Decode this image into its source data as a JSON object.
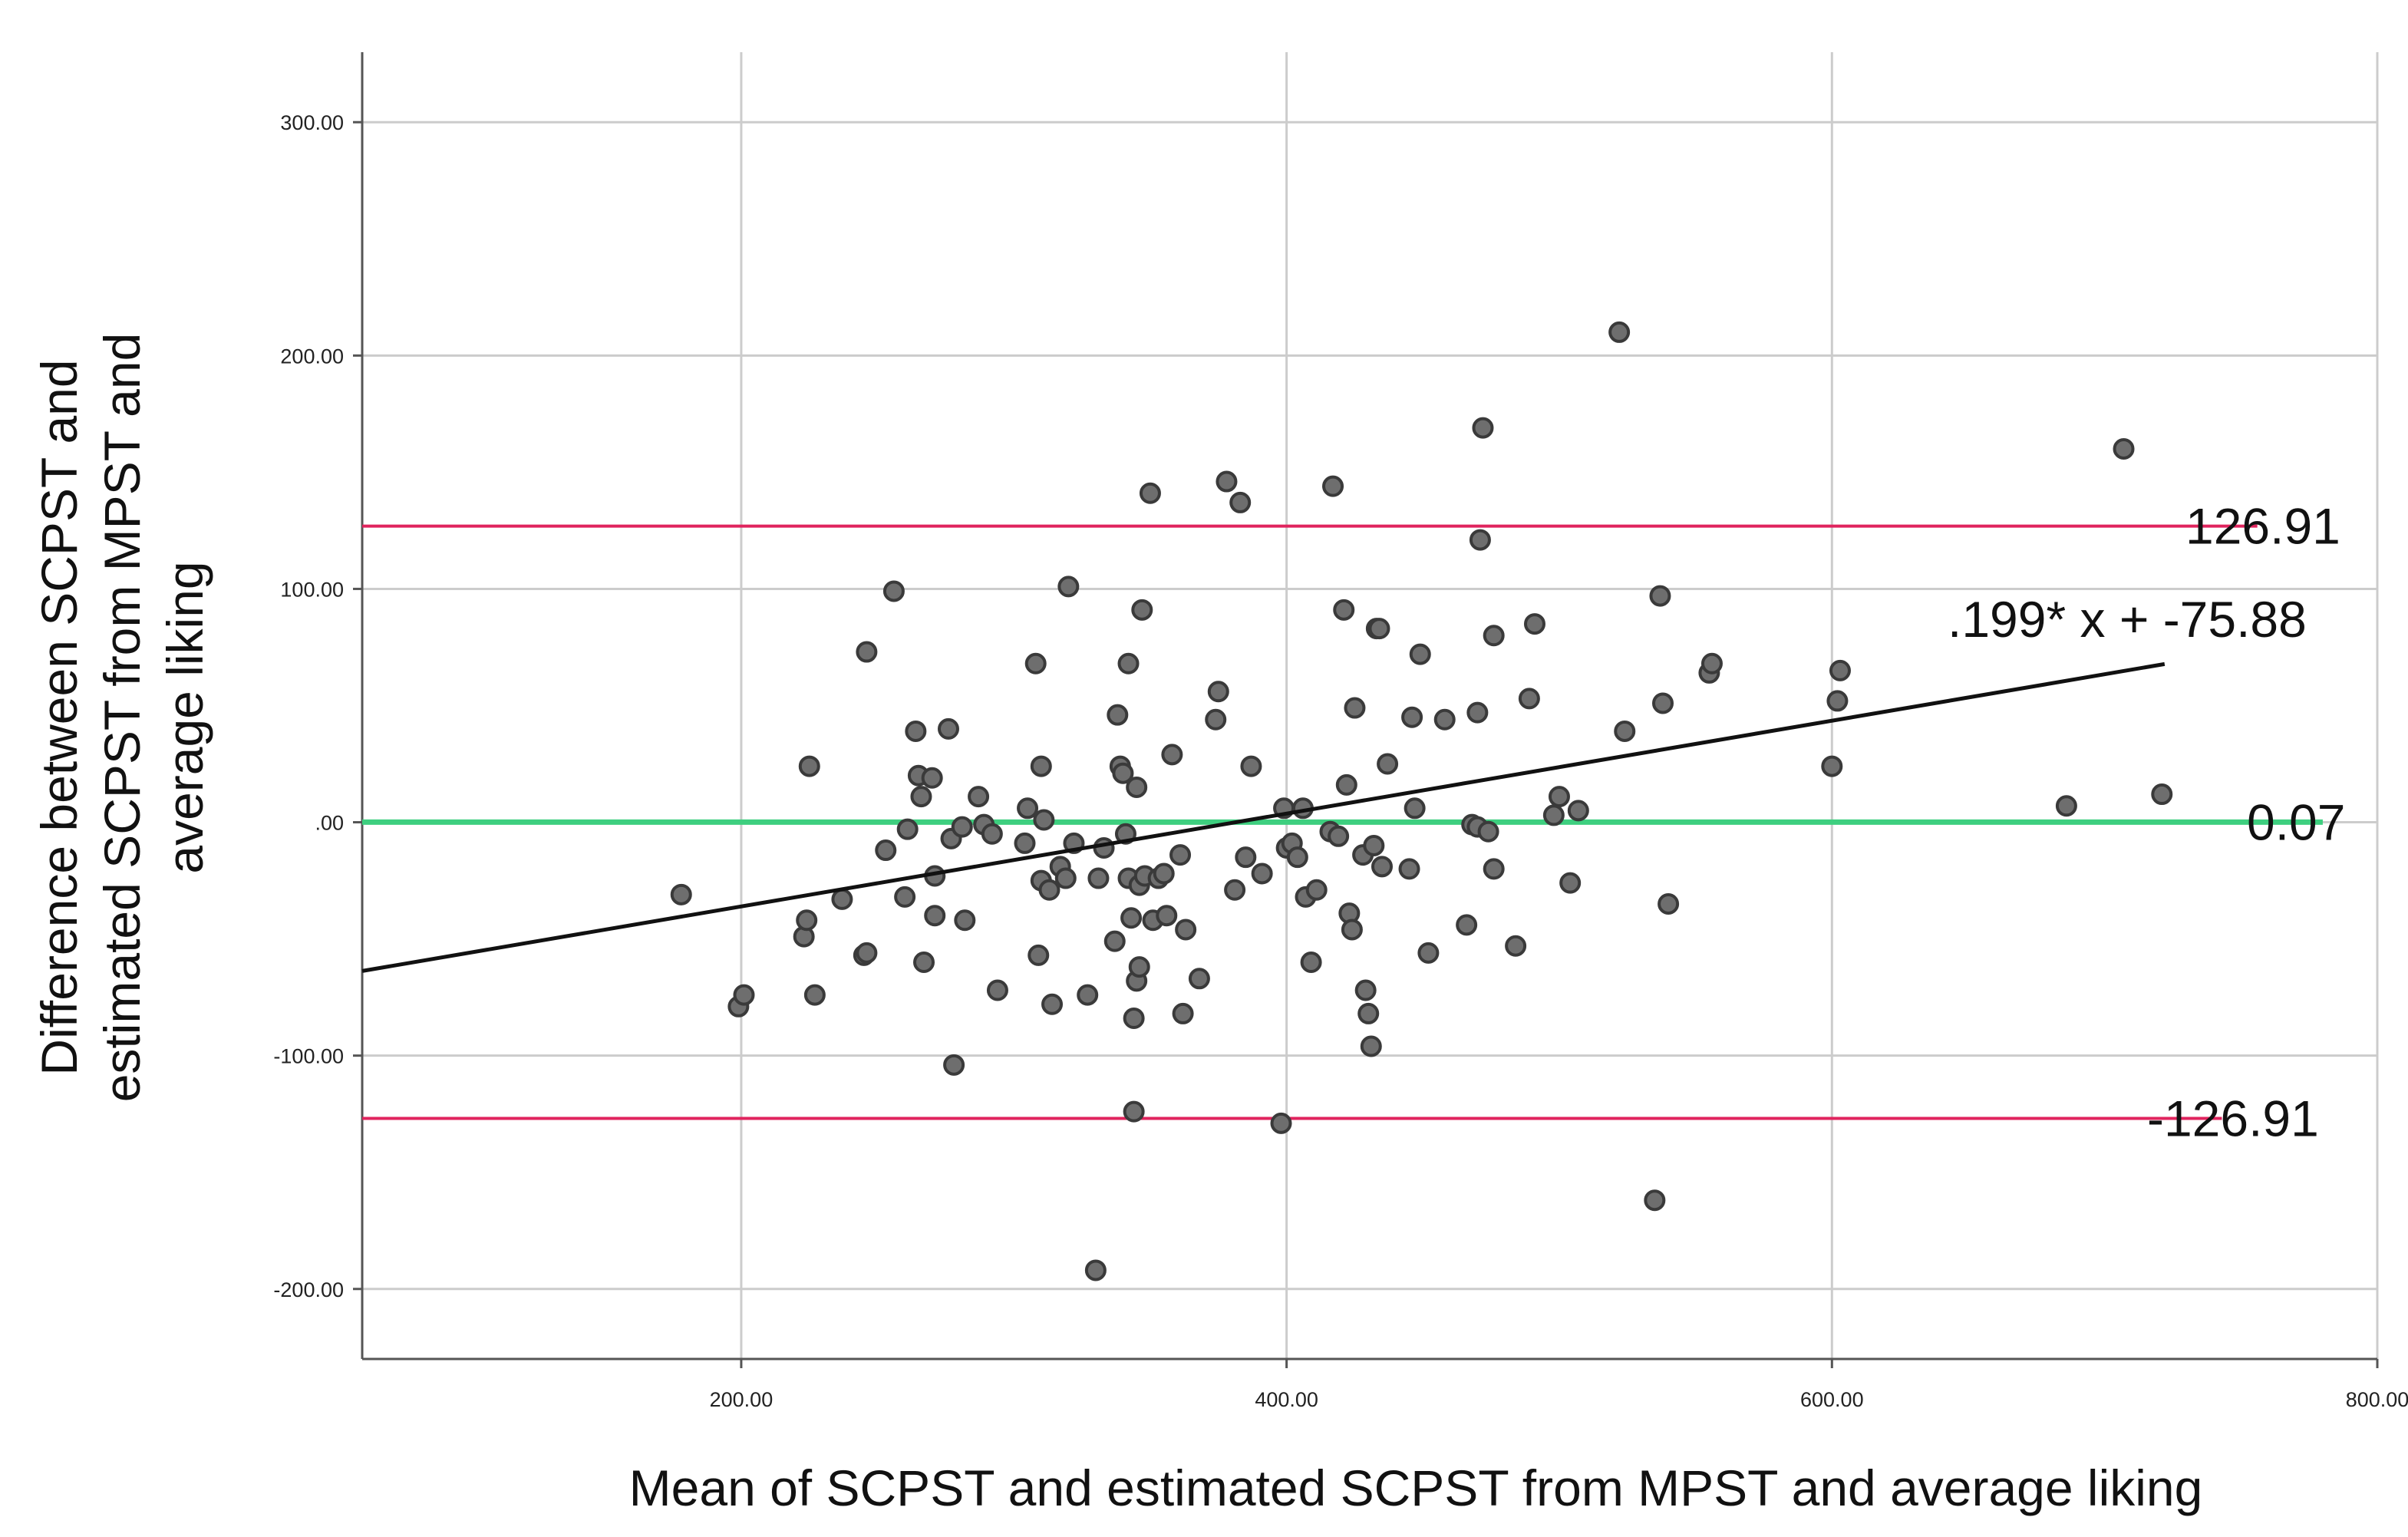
{
  "chart_data": {
    "type": "scatter",
    "title": "",
    "xlabel": "Mean of SCPST and estimated SCPST from MPST and average liking",
    "ylabel_lines": [
      "Difference between SCPST and",
      "estimated SCPST from MPST and",
      "average liking"
    ],
    "xlim": [
      61,
      800
    ],
    "ylim": [
      -230,
      330
    ],
    "x_ticks": [
      200,
      400,
      600,
      800
    ],
    "x_tick_labels": [
      "200.00",
      "400.00",
      "600.00",
      "800.00"
    ],
    "y_ticks": [
      -200,
      -100,
      0,
      100,
      200,
      300
    ],
    "y_tick_labels": [
      "-200.00",
      "-100.00",
      ".00",
      "100.00",
      "200.00",
      "300.00"
    ],
    "grid": true,
    "colors": {
      "point_fill": "#6e6e6e",
      "point_stroke": "#3a3a3a",
      "limit_line": "#e0245e",
      "mean_line": "#3ecf7f",
      "regression_line": "#111111",
      "grid": "#cccccc",
      "axis": "#555555"
    },
    "reference_lines": [
      {
        "name": "upper-limit",
        "y": 126.91,
        "x_end": 756,
        "label": "126.91",
        "color": "#e0245e"
      },
      {
        "name": "mean-difference",
        "y": 0.07,
        "x_end": 780,
        "label": "0.07",
        "color": "#3ecf7f"
      },
      {
        "name": "lower-limit",
        "y": -126.91,
        "x_end": 743,
        "label": "-126.91",
        "color": "#e0245e"
      }
    ],
    "regression": {
      "slope": 0.199,
      "intercept": -75.88,
      "x_start": 61,
      "x_end": 722,
      "label": ".199* x + -75.88"
    },
    "points": [
      [
        178,
        -31
      ],
      [
        199,
        -79
      ],
      [
        201,
        -74
      ],
      [
        223,
        -49
      ],
      [
        224,
        -42
      ],
      [
        225,
        24
      ],
      [
        227,
        -74
      ],
      [
        237,
        -33
      ],
      [
        245,
        -57
      ],
      [
        246,
        -56
      ],
      [
        246,
        73
      ],
      [
        253,
        -12
      ],
      [
        256,
        99
      ],
      [
        260,
        -32
      ],
      [
        261,
        -3
      ],
      [
        264,
        39
      ],
      [
        265,
        20
      ],
      [
        266,
        11
      ],
      [
        267,
        -60
      ],
      [
        270,
        19
      ],
      [
        271,
        -23
      ],
      [
        271,
        -40
      ],
      [
        276,
        40
      ],
      [
        277,
        -7
      ],
      [
        278,
        -104
      ],
      [
        281,
        -2
      ],
      [
        282,
        -42
      ],
      [
        287,
        11
      ],
      [
        289,
        -1
      ],
      [
        292,
        -5
      ],
      [
        294,
        -72
      ],
      [
        304,
        -9
      ],
      [
        305,
        6
      ],
      [
        308,
        68
      ],
      [
        309,
        -57
      ],
      [
        310,
        -25
      ],
      [
        310,
        24
      ],
      [
        311,
        1
      ],
      [
        313,
        -29
      ],
      [
        314,
        -78
      ],
      [
        317,
        -19
      ],
      [
        319,
        -24
      ],
      [
        320,
        101
      ],
      [
        322,
        -9
      ],
      [
        327,
        -74
      ],
      [
        330,
        -192
      ],
      [
        331,
        -24
      ],
      [
        333,
        -11
      ],
      [
        337,
        -51
      ],
      [
        338,
        46
      ],
      [
        339,
        24
      ],
      [
        340,
        21
      ],
      [
        341,
        -5
      ],
      [
        342,
        68
      ],
      [
        342,
        -24
      ],
      [
        343,
        -41
      ],
      [
        344,
        -84
      ],
      [
        344,
        -124
      ],
      [
        345,
        15
      ],
      [
        345,
        -68
      ],
      [
        346,
        -27
      ],
      [
        346,
        -62
      ],
      [
        347,
        91
      ],
      [
        348,
        -23
      ],
      [
        350,
        141
      ],
      [
        351,
        -42
      ],
      [
        353,
        -24
      ],
      [
        355,
        -22
      ],
      [
        356,
        -40
      ],
      [
        358,
        29
      ],
      [
        361,
        -14
      ],
      [
        362,
        -82
      ],
      [
        363,
        -46
      ],
      [
        368,
        -67
      ],
      [
        374,
        44
      ],
      [
        375,
        56
      ],
      [
        378,
        146
      ],
      [
        381,
        -29
      ],
      [
        383,
        137
      ],
      [
        385,
        -15
      ],
      [
        387,
        24
      ],
      [
        391,
        -22
      ],
      [
        398,
        -129
      ],
      [
        399,
        6
      ],
      [
        400,
        -11
      ],
      [
        402,
        -9
      ],
      [
        404,
        -15
      ],
      [
        406,
        6
      ],
      [
        407,
        -32
      ],
      [
        409,
        -60
      ],
      [
        411,
        -29
      ],
      [
        416,
        -4
      ],
      [
        417,
        144
      ],
      [
        419,
        -6
      ],
      [
        421,
        91
      ],
      [
        422,
        16
      ],
      [
        423,
        -39
      ],
      [
        424,
        -46
      ],
      [
        425,
        49
      ],
      [
        428,
        -14
      ],
      [
        429,
        -72
      ],
      [
        430,
        -82
      ],
      [
        431,
        -96
      ],
      [
        432,
        -10
      ],
      [
        433,
        83
      ],
      [
        434,
        83
      ],
      [
        435,
        -19
      ],
      [
        437,
        25
      ],
      [
        445,
        -20
      ],
      [
        446,
        45
      ],
      [
        447,
        6
      ],
      [
        449,
        72
      ],
      [
        452,
        -56
      ],
      [
        458,
        44
      ],
      [
        466,
        -44
      ],
      [
        468,
        -1
      ],
      [
        470,
        -2
      ],
      [
        470,
        47
      ],
      [
        471,
        121
      ],
      [
        472,
        169
      ],
      [
        474,
        -4
      ],
      [
        476,
        -20
      ],
      [
        476,
        80
      ],
      [
        484,
        -53
      ],
      [
        489,
        53
      ],
      [
        491,
        85
      ],
      [
        498,
        3
      ],
      [
        500,
        11
      ],
      [
        504,
        -26
      ],
      [
        507,
        5
      ],
      [
        522,
        210
      ],
      [
        524,
        39
      ],
      [
        535,
        -162
      ],
      [
        537,
        97
      ],
      [
        538,
        51
      ],
      [
        540,
        -35
      ],
      [
        555,
        64
      ],
      [
        556,
        68
      ],
      [
        600,
        24
      ],
      [
        602,
        52
      ],
      [
        603,
        65
      ],
      [
        686,
        7
      ],
      [
        707,
        160
      ],
      [
        721,
        12
      ]
    ]
  }
}
